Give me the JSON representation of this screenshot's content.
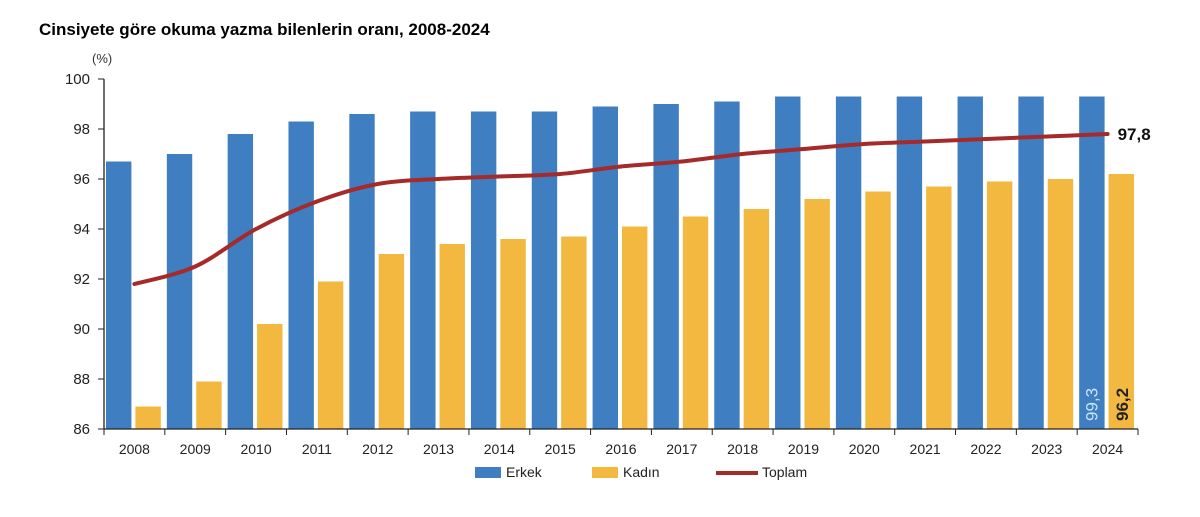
{
  "chart_data": {
    "type": "bar",
    "title": "Cinsiyete göre okuma yazma bilenlerin oranı, 2008-2024",
    "ylabel": "(%)",
    "ylim": [
      86,
      100
    ],
    "yticks": [
      86,
      88,
      90,
      92,
      94,
      96,
      98,
      100
    ],
    "grid": false,
    "legend_placement": "bottom",
    "categories": [
      "2008",
      "2009",
      "2010",
      "2011",
      "2012",
      "2013",
      "2014",
      "2015",
      "2016",
      "2017",
      "2018",
      "2019",
      "2020",
      "2021",
      "2022",
      "2023",
      "2024"
    ],
    "series": [
      {
        "name": "Erkek",
        "type": "bar",
        "color": "#3f7fc1",
        "values": [
          96.7,
          97.0,
          97.8,
          98.3,
          98.6,
          98.7,
          98.7,
          98.7,
          98.9,
          99.0,
          99.1,
          99.3,
          99.3,
          99.3,
          99.3,
          99.3,
          99.3
        ]
      },
      {
        "name": "Kadın",
        "type": "bar",
        "color": "#f3b83f",
        "values": [
          86.9,
          87.9,
          90.2,
          91.9,
          93.0,
          93.4,
          93.6,
          93.7,
          94.1,
          94.5,
          94.8,
          95.2,
          95.5,
          95.7,
          95.9,
          96.0,
          96.2
        ]
      },
      {
        "name": "Toplam",
        "type": "line",
        "color": "#a52a2a",
        "values": [
          91.8,
          92.5,
          94.0,
          95.1,
          95.8,
          96.0,
          96.1,
          96.2,
          96.5,
          96.7,
          97.0,
          97.2,
          97.4,
          97.5,
          97.6,
          97.7,
          97.8
        ]
      }
    ],
    "data_labels": {
      "erkek_2024": "99,3",
      "kadin_2024": "96,2",
      "toplam_2024": "97,8"
    }
  }
}
